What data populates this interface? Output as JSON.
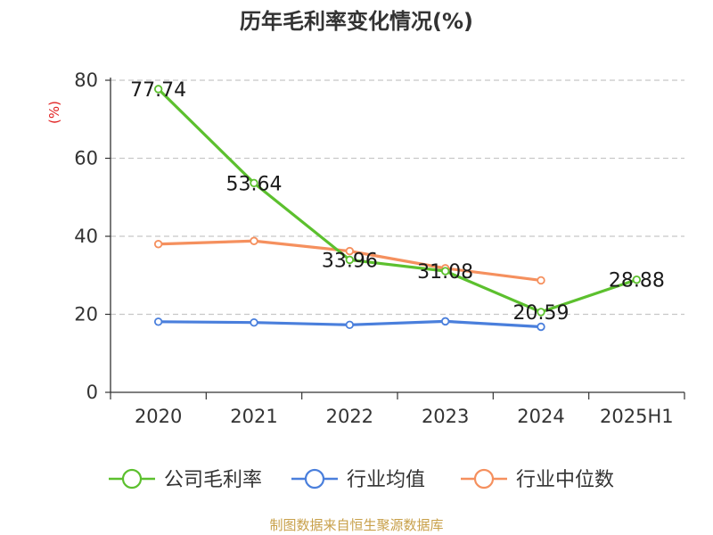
{
  "title": "历年毛利率变化情况(%)",
  "source": "制图数据来自恒生聚源数据库",
  "chart_data": {
    "type": "line",
    "title": "历年毛利率变化情况(%)",
    "ylabel": "(%)",
    "xlabel": "",
    "ylim": [
      0,
      80
    ],
    "yticks": [
      0,
      20,
      40,
      60,
      80
    ],
    "grid": true,
    "legend_position": "bottom",
    "categories": [
      "2020",
      "2021",
      "2022",
      "2023",
      "2024",
      "2025H1"
    ],
    "series": [
      {
        "name": "公司毛利率",
        "color": "#5cc02e",
        "values": [
          77.74,
          53.64,
          33.96,
          31.08,
          20.59,
          28.88
        ],
        "labels": [
          "77.74",
          "53.64",
          "33.96",
          "31.08",
          "20.59",
          "28.88"
        ]
      },
      {
        "name": "行业均值",
        "color": "#4a7fdc",
        "values": [
          18.1,
          17.9,
          17.3,
          18.2,
          16.8,
          null
        ]
      },
      {
        "name": "行业中位数",
        "color": "#f5905e",
        "values": [
          38.0,
          38.8,
          36.2,
          31.8,
          28.7,
          null
        ]
      }
    ]
  }
}
